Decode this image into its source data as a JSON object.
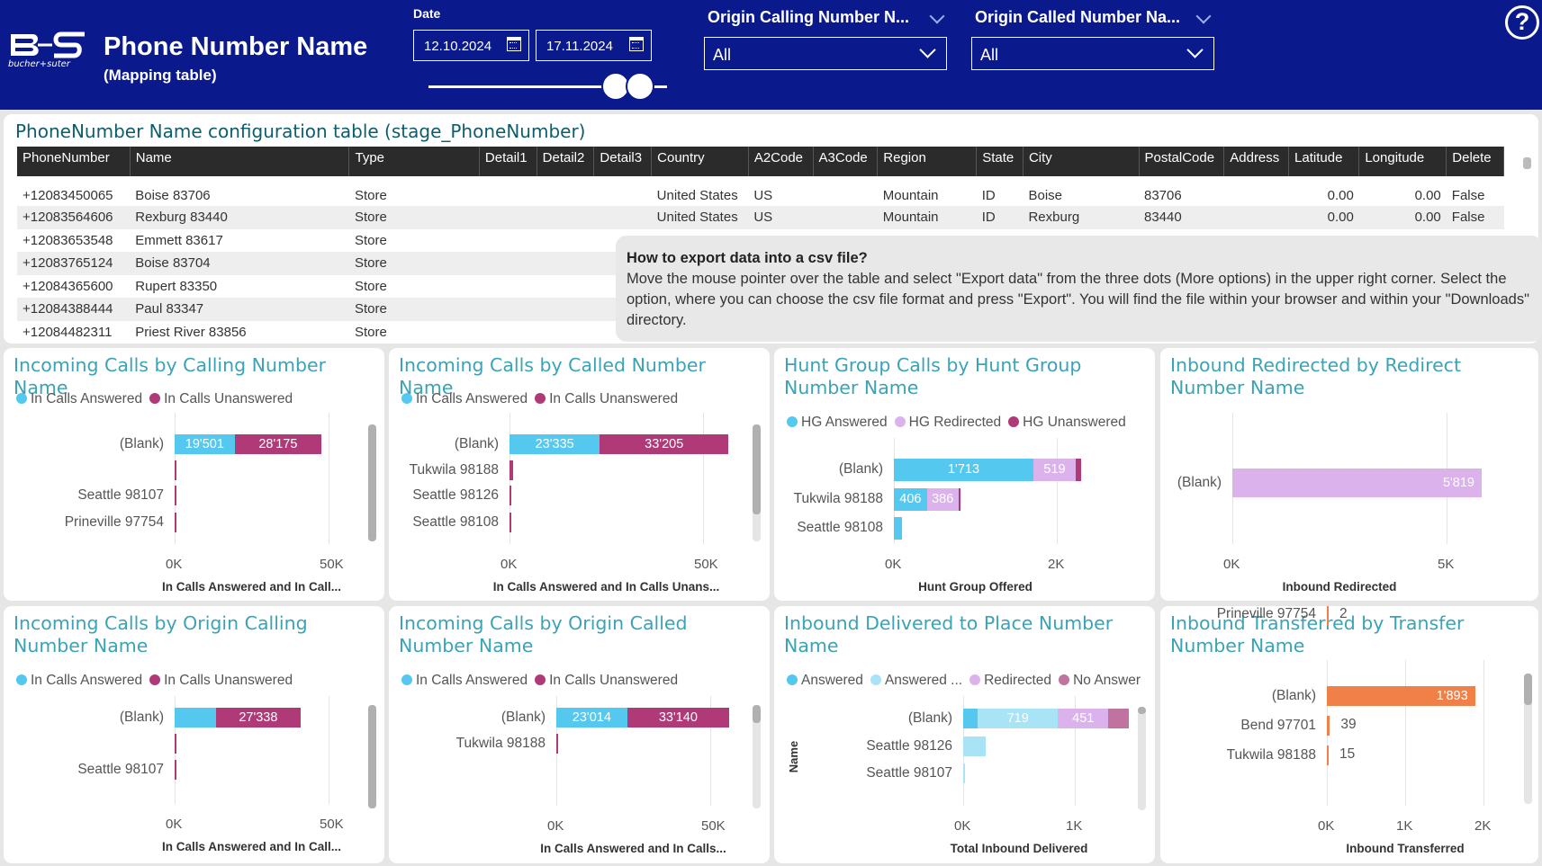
{
  "header": {
    "logo_text": "bucher+suter",
    "title": "Phone Number Name",
    "subtitle": "(Mapping table)",
    "date_label": "Date",
    "date_from": "12.10.2024",
    "date_to": "17.11.2024",
    "filter1_label": "Origin Calling Number N...",
    "filter1_value": "All",
    "filter2_label": "Origin Called Number Na...",
    "filter2_value": "All",
    "help_symbol": "?"
  },
  "table": {
    "title": "PhoneNumber Name configuration table (stage_PhoneNumber)",
    "columns": [
      "PhoneNumber",
      "Name",
      "Type",
      "Detail1",
      "Detail2",
      "Detail3",
      "Country",
      "A2Code",
      "A3Code",
      "Region",
      "State",
      "City",
      "PostalCode",
      "Address",
      "Latitude",
      "Longitude",
      "Delete"
    ],
    "rows": [
      [
        "+12083450065",
        "Boise 83706",
        "Store",
        "",
        "",
        "",
        "United States",
        "US",
        "",
        "Mountain",
        "ID",
        "Boise",
        "83706",
        "",
        "0.00",
        "0.00",
        "False"
      ],
      [
        "+12083564606",
        "Rexburg 83440",
        "Store",
        "",
        "",
        "",
        "United States",
        "US",
        "",
        "Mountain",
        "ID",
        "Rexburg",
        "83440",
        "",
        "0.00",
        "0.00",
        "False"
      ],
      [
        "+12083653548",
        "Emmett 83617",
        "Store",
        "",
        "",
        "",
        "",
        "",
        "",
        "",
        "",
        "",
        "",
        "",
        "",
        "",
        ""
      ],
      [
        "+12083765124",
        "Boise 83704",
        "Store",
        "",
        "",
        "",
        "",
        "",
        "",
        "",
        "",
        "",
        "",
        "",
        "",
        "",
        ""
      ],
      [
        "+12084365600",
        "Rupert 83350",
        "Store",
        "",
        "",
        "",
        "",
        "",
        "",
        "",
        "",
        "",
        "",
        "",
        "",
        "",
        ""
      ],
      [
        "+12084388444",
        "Paul 83347",
        "Store",
        "",
        "",
        "",
        "",
        "",
        "",
        "",
        "",
        "",
        "",
        "",
        "",
        "",
        ""
      ],
      [
        "+12084482311",
        "Priest River 83856",
        "Store",
        "",
        "",
        "",
        "",
        "",
        "",
        "",
        "",
        "",
        "",
        "",
        "",
        "",
        ""
      ]
    ]
  },
  "tooltip": {
    "title": "How to export data into a csv file?",
    "body": "Move the mouse pointer over the table and select \"Export data\" from the three dots (More options) in the upper right corner. Select the option, where you can choose the csv file format and press \"Export\". You will find the file within your browser and within your \"Downloads\" directory."
  },
  "colors": {
    "header_bg": "#0a1a8c",
    "answered": "#55c8ef",
    "unanswered": "#b03a78",
    "hg_redirected": "#dcb2ec",
    "answered_light": "#a9e3f6",
    "redirected": "#dcb2ec",
    "no_answer": "#c0739e",
    "transferred": "#f07f48",
    "title_teal": "#3aa3b5"
  },
  "charts": [
    {
      "title": "Incoming Calls by Calling Number Name",
      "legend": [
        "In Calls Answered",
        "In Calls Unanswered"
      ],
      "legend_colors": [
        "#55c8ef",
        "#b03a78"
      ],
      "categories": [
        "(Blank)",
        "",
        "Seattle 98107",
        "Prineville 97754"
      ],
      "series": [
        {
          "name": "In Calls Answered",
          "values": [
            19501,
            0,
            0,
            0
          ],
          "labels": [
            "19'501",
            "",
            "",
            ""
          ]
        },
        {
          "name": "In Calls Unanswered",
          "values": [
            28175,
            500,
            300,
            300
          ],
          "labels": [
            "28'175",
            "",
            "",
            ""
          ]
        }
      ],
      "ticks": [
        "0K",
        "50K"
      ],
      "xmax": 50000,
      "xlabel": "In Calls Answered and In Call..."
    },
    {
      "title": "Incoming Calls by Called Number Name",
      "legend": [
        "In Calls Answered",
        "In Calls Unanswered"
      ],
      "legend_colors": [
        "#55c8ef",
        "#b03a78"
      ],
      "categories": [
        "(Blank)",
        "Tukwila 98188",
        "Seattle 98126",
        "Seattle 98108"
      ],
      "series": [
        {
          "name": "In Calls Answered",
          "values": [
            23335,
            0,
            0,
            0
          ],
          "labels": [
            "23'335",
            "",
            "",
            ""
          ]
        },
        {
          "name": "In Calls Unanswered",
          "values": [
            33205,
            900,
            300,
            300
          ],
          "labels": [
            "33'205",
            "",
            "",
            ""
          ]
        }
      ],
      "ticks": [
        "0K",
        "50K"
      ],
      "xmax": 50000,
      "xlabel": "In Calls Answered and In Calls Unans..."
    },
    {
      "title": "Hunt Group Calls by Hunt Group Number Name",
      "legend": [
        "HG Answered",
        "HG Redirected",
        "HG Unanswered"
      ],
      "legend_colors": [
        "#55c8ef",
        "#dcb2ec",
        "#b03a78"
      ],
      "categories": [
        "(Blank)",
        "Tukwila 98188",
        "Seattle 98108"
      ],
      "series": [
        {
          "name": "HG Answered",
          "values": [
            1713,
            406,
            100
          ],
          "labels": [
            "1'713",
            "406",
            ""
          ]
        },
        {
          "name": "HG Redirected",
          "values": [
            519,
            386,
            0
          ],
          "labels": [
            "519",
            "386",
            ""
          ]
        },
        {
          "name": "HG Unanswered",
          "values": [
            70,
            15,
            0
          ],
          "labels": [
            "",
            "",
            ""
          ]
        }
      ],
      "ticks": [
        "0K",
        "2K"
      ],
      "xmax": 2000,
      "xlabel": "Hunt Group Offered"
    },
    {
      "title": "Inbound Redirected by Redirect Number Name",
      "legend": [],
      "legend_colors": [],
      "categories": [
        "(Blank)"
      ],
      "series": [
        {
          "name": "Inbound Redirected",
          "values": [
            5819
          ],
          "labels": [
            "5'819"
          ]
        }
      ],
      "ticks": [
        "0K",
        "5K"
      ],
      "xmax": 5000,
      "xlabel": "Inbound Redirected"
    },
    {
      "title": "Incoming Calls by Origin Calling Number Name",
      "legend": [
        "In Calls Answered",
        "In Calls Unanswered"
      ],
      "legend_colors": [
        "#55c8ef",
        "#b03a78"
      ],
      "categories": [
        "(Blank)",
        "",
        "Seattle 98107"
      ],
      "series": [
        {
          "name": "In Calls Answered",
          "values": [
            13500,
            0,
            0
          ],
          "labels": [
            "",
            "",
            ""
          ]
        },
        {
          "name": "In Calls Unanswered",
          "values": [
            27338,
            500,
            300
          ],
          "labels": [
            "27'338",
            "",
            ""
          ]
        }
      ],
      "ticks": [
        "0K",
        "50K"
      ],
      "xmax": 50000,
      "xlabel": "In Calls Answered and In Call..."
    },
    {
      "title": "Incoming Calls by Origin Called Number Name",
      "legend": [
        "In Calls Answered",
        "In Calls Unanswered"
      ],
      "legend_colors": [
        "#55c8ef",
        "#b03a78"
      ],
      "categories": [
        "(Blank)",
        "Tukwila 98188"
      ],
      "series": [
        {
          "name": "In Calls Answered",
          "values": [
            23014,
            0
          ],
          "labels": [
            "23'014",
            ""
          ]
        },
        {
          "name": "In Calls Unanswered",
          "values": [
            33140,
            500
          ],
          "labels": [
            "33'140",
            ""
          ]
        }
      ],
      "ticks": [
        "0K",
        "50K"
      ],
      "xmax": 50000,
      "xlabel": "In Calls Answered and In Calls..."
    },
    {
      "title": "Inbound Delivered to Place Number Name",
      "legend": [
        "Answered",
        "Answered ...",
        "Redirected",
        "No Answer"
      ],
      "legend_colors": [
        "#55c8ef",
        "#a9e3f6",
        "#dcb2ec",
        "#c0739e"
      ],
      "categories": [
        "(Blank)",
        "Seattle 98126",
        "Seattle 98107"
      ],
      "series": [
        {
          "name": "Answered",
          "values": [
            130,
            0,
            0
          ],
          "labels": [
            "",
            "",
            ""
          ]
        },
        {
          "name": "Answered ...",
          "values": [
            719,
            200,
            15
          ],
          "labels": [
            "719",
            "",
            ""
          ]
        },
        {
          "name": "Redirected",
          "values": [
            451,
            0,
            0
          ],
          "labels": [
            "451",
            "",
            ""
          ]
        },
        {
          "name": "No Answer",
          "values": [
            180,
            0,
            0
          ],
          "labels": [
            "",
            "",
            ""
          ]
        }
      ],
      "ticks": [
        "0K",
        "1K"
      ],
      "xmax": 1000,
      "xlabel": "Total Inbound Delivered",
      "ylabel": "Name"
    },
    {
      "title": "Inbound Transferred by Transfer Number Name",
      "legend": [],
      "legend_colors": [],
      "categories": [
        "(Blank)",
        "Bend 97701",
        "Tukwila 98188",
        "Prineville 97754"
      ],
      "series": [
        {
          "name": "Inbound Transferred",
          "values": [
            1893,
            39,
            15,
            2
          ],
          "labels": [
            "1'893",
            "39",
            "15",
            "2"
          ]
        }
      ],
      "ticks": [
        "0K",
        "1K",
        "2K"
      ],
      "xmax": 2000,
      "xlabel": "Inbound Transferred"
    }
  ]
}
